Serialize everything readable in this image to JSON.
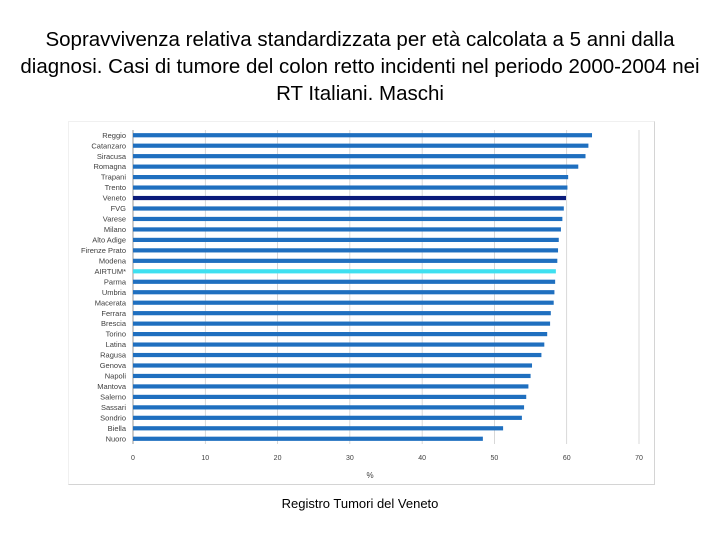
{
  "slide": {
    "title": "Sopravvivenza relativa standardizzata per età calcolata a 5 anni dalla diagnosi. Casi di tumore del colon retto incidenti nel periodo 2000-2004 nei RT Italiani. Maschi",
    "footer": "Registro Tumori del Veneto"
  },
  "colors": {
    "default_bar": "#1f6fbf",
    "highlight_veneto": "#0a1a7a",
    "highlight_airtum": "#3ee0f0",
    "grid": "#c8c8c8"
  },
  "chart_data": {
    "type": "bar",
    "orientation": "horizontal",
    "title": "",
    "xlabel": "%",
    "ylabel": "",
    "xlim": [
      0,
      70
    ],
    "xticks": [
      "0",
      "10",
      "20",
      "30",
      "40",
      "50",
      "60",
      "70"
    ],
    "grid": true,
    "categories": [
      "Reggio",
      "Catanzaro",
      "Siracusa",
      "Romagna",
      "Trapani",
      "Trento",
      "Veneto",
      "FVG",
      "Varese",
      "Milano",
      "Alto Adige",
      "Firenze Prato",
      "Modena",
      "AIRTUM*",
      "Parma",
      "Umbria",
      "Macerata",
      "Ferrara",
      "Brescia",
      "Torino",
      "Latina",
      "Ragusa",
      "Genova",
      "Napoli",
      "Mantova",
      "Salerno",
      "Sassari",
      "Sondrio",
      "Biella",
      "Nuoro"
    ],
    "values": [
      63.5,
      63.0,
      62.6,
      61.6,
      60.2,
      60.1,
      59.9,
      59.6,
      59.4,
      59.2,
      58.9,
      58.8,
      58.7,
      58.5,
      58.4,
      58.3,
      58.2,
      57.8,
      57.7,
      57.3,
      56.9,
      56.5,
      55.2,
      55.0,
      54.7,
      54.4,
      54.1,
      53.8,
      51.2,
      48.4
    ],
    "highlights": {
      "Veneto": "highlight_veneto",
      "AIRTUM*": "highlight_airtum"
    }
  }
}
